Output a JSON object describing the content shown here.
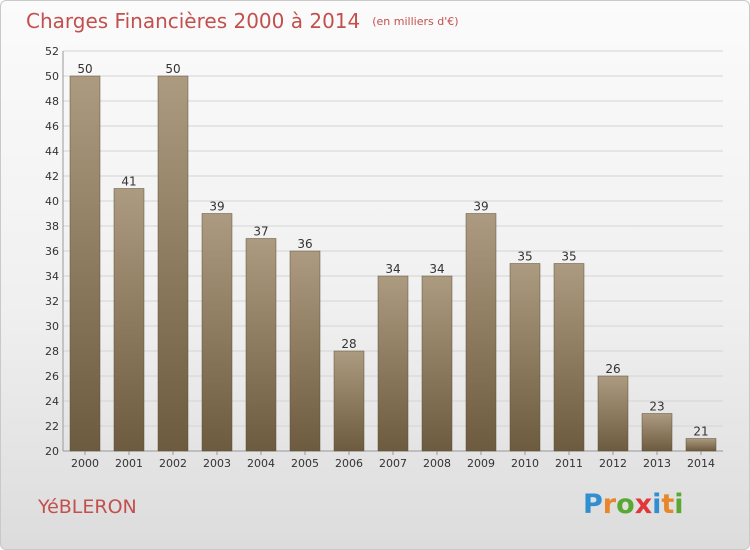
{
  "header": {
    "title": "Charges Financières 2000 à 2014",
    "unit": "(en milliers d'€)"
  },
  "footer": {
    "commune": "YéBLERON",
    "brand_letters": [
      {
        "char": "P",
        "color": "#2f8fd0"
      },
      {
        "char": "r",
        "color": "#e8862a"
      },
      {
        "char": "o",
        "color": "#5aa832"
      },
      {
        "char": "x",
        "color": "#e2373a"
      },
      {
        "char": "i",
        "color": "#2f8fd0"
      },
      {
        "char": "t",
        "color": "#e8862a"
      },
      {
        "char": "i",
        "color": "#5aa832"
      }
    ]
  },
  "colors": {
    "title": "#c2504e",
    "bar_top": "#ac9b80",
    "bar_bottom": "#6d5b3f",
    "grid": "#d4d4d4",
    "text": "#333333"
  },
  "chart_data": {
    "type": "bar",
    "categories": [
      "2000",
      "2001",
      "2002",
      "2003",
      "2004",
      "2005",
      "2006",
      "2007",
      "2008",
      "2009",
      "2010",
      "2011",
      "2012",
      "2013",
      "2014"
    ],
    "values": [
      50,
      41,
      50,
      39,
      37,
      36,
      28,
      34,
      34,
      39,
      35,
      35,
      26,
      23,
      21
    ],
    "data_labels": [
      "50",
      "41",
      "50",
      "39",
      "37",
      "36",
      "28",
      "34",
      "34",
      "39",
      "35",
      "35",
      "26",
      "23",
      "21"
    ],
    "title": "Charges Financières 2000 à 2014",
    "xlabel": "",
    "ylabel": "",
    "ylim": [
      20,
      52
    ],
    "yticks": [
      20,
      22,
      24,
      26,
      28,
      30,
      32,
      34,
      36,
      38,
      40,
      42,
      44,
      46,
      48,
      50,
      52
    ],
    "grid": true
  }
}
